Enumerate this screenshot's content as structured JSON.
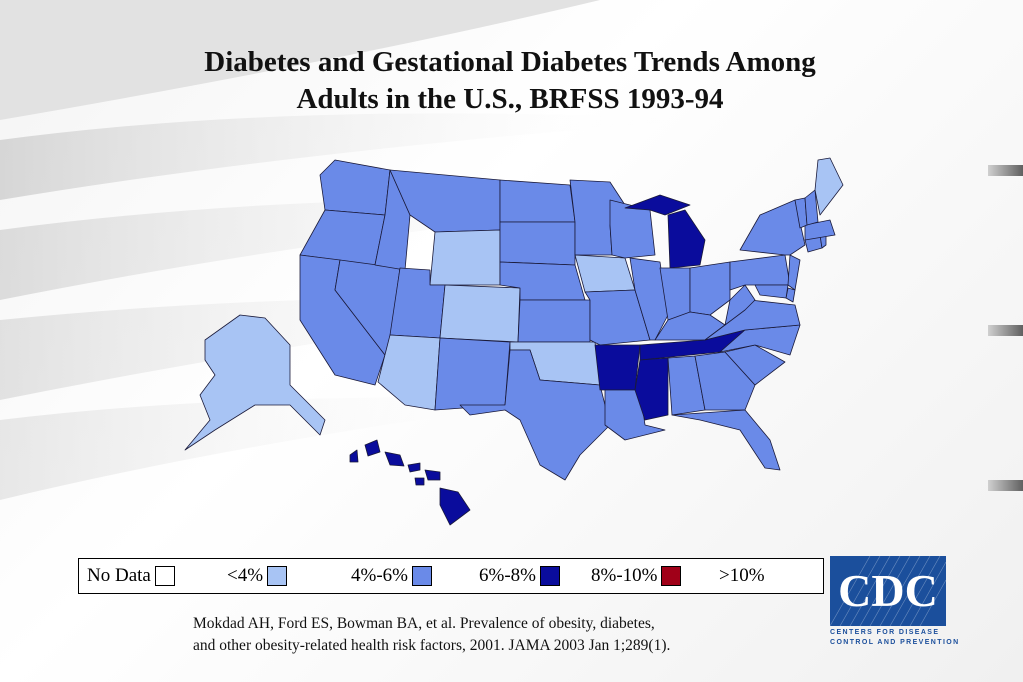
{
  "title_line1": "Diabetes and Gestational Diabetes Trends Among",
  "title_line2": "Adults in the U.S., BRFSS 1993-94",
  "colors": {
    "no_data": "#ffffff",
    "lt4": "#a8c4f4",
    "4to6": "#6a8ae8",
    "6to8": "#0a0c9c",
    "8to10": "#a00018",
    "gt10": "#a00018"
  },
  "legend": [
    {
      "label": "No Data",
      "color": "#ffffff"
    },
    {
      "label": "<4%",
      "color": "#a8c4f4"
    },
    {
      "label": "4%-6%",
      "color": "#6a8ae8"
    },
    {
      "label": "6%-8%",
      "color": "#0a0c9c"
    },
    {
      "label": "8%-10%",
      "color": "#a00018"
    },
    {
      "label": ">10%",
      "color": ""
    }
  ],
  "state_categories": {
    "WA": "4%-6%",
    "OR": "4%-6%",
    "CA": "4%-6%",
    "NV": "4%-6%",
    "ID": "4%-6%",
    "MT": "4%-6%",
    "WY": "<4%",
    "UT": "4%-6%",
    "AZ": "<4%",
    "CO": "<4%",
    "NM": "4%-6%",
    "ND": "4%-6%",
    "SD": "4%-6%",
    "NE": "4%-6%",
    "KS": "4%-6%",
    "OK": "<4%",
    "TX": "4%-6%",
    "MN": "4%-6%",
    "IA": "<4%",
    "MO": "4%-6%",
    "AR": "6%-8%",
    "LA": "4%-6%",
    "WI": "4%-6%",
    "IL": "4%-6%",
    "MI": "6%-8%",
    "IN": "4%-6%",
    "OH": "4%-6%",
    "KY": "4%-6%",
    "TN": "6%-8%",
    "MS": "6%-8%",
    "AL": "4%-6%",
    "GA": "4%-6%",
    "FL": "4%-6%",
    "SC": "4%-6%",
    "NC": "4%-6%",
    "VA": "4%-6%",
    "WV": "4%-6%",
    "PA": "4%-6%",
    "NY": "4%-6%",
    "NJ": "4%-6%",
    "DE": "4%-6%",
    "MD": "4%-6%",
    "CT": "4%-6%",
    "RI": "4%-6%",
    "MA": "4%-6%",
    "VT": "4%-6%",
    "NH": "4%-6%",
    "ME": "<4%",
    "AK": "<4%",
    "HI": "6%-8%"
  },
  "citation_line1": "Mokdad AH, Ford ES, Bowman BA, et al. Prevalence of obesity, diabetes,",
  "citation_line2": "and other obesity-related health risk factors, 2001. JAMA 2003 Jan 1;289(1).",
  "logo": {
    "text": "CDC",
    "caption_line1": "Centers for Disease",
    "caption_line2": "Control and Prevention"
  }
}
